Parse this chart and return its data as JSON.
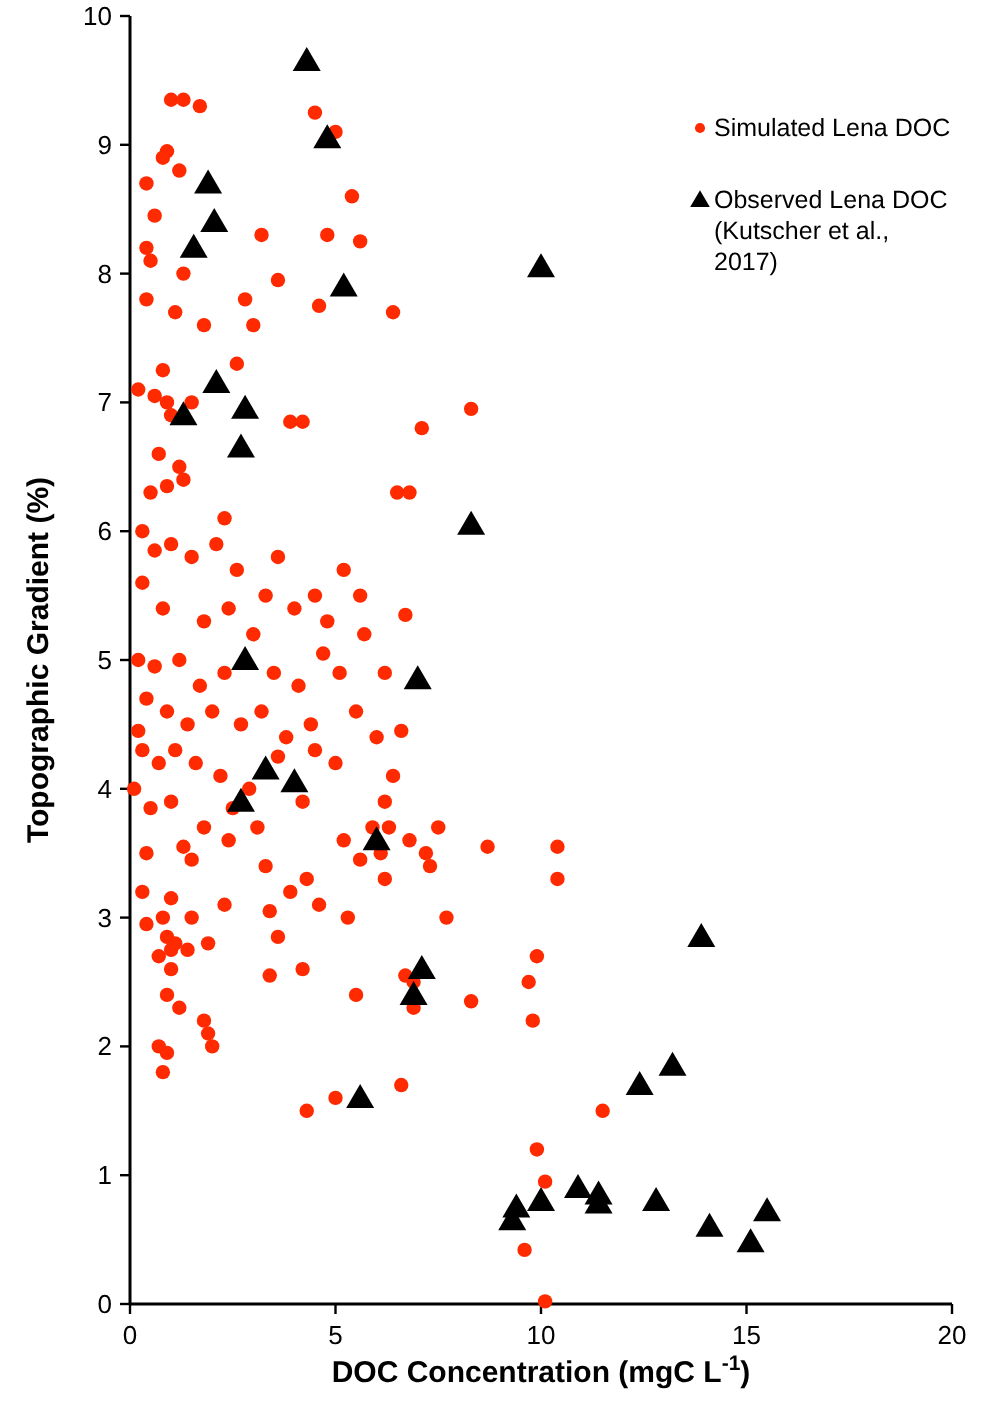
{
  "chart_data": {
    "type": "scatter",
    "xlabel": "DOC Concentration (mgC L$^{-1}$)",
    "ylabel": "Topographic Gradient (%)",
    "xlim": [
      0,
      20
    ],
    "xticks": [
      0,
      5,
      10,
      15,
      20
    ],
    "ylim": [
      0,
      10
    ],
    "yticks": [
      0,
      1,
      2,
      3,
      4,
      5,
      6,
      7,
      8,
      9,
      10
    ],
    "grid": false,
    "legend": "top right",
    "series": [
      {
        "name": "Simulated Lena DOC",
        "color": "#ff2a00",
        "marker": "circle",
        "x": [
          1.0,
          1.3,
          1.7,
          4.5,
          5.0,
          0.9,
          0.8,
          1.2,
          0.4,
          5.4,
          0.6,
          3.2,
          4.8,
          5.6,
          0.4,
          0.5,
          1.3,
          3.6,
          0.4,
          2.8,
          1.1,
          6.4,
          4.6,
          1.8,
          3.0,
          0.2,
          0.6,
          0.9,
          1.0,
          1.5,
          2.6,
          0.8,
          8.3,
          7.1,
          3.9,
          4.2,
          0.7,
          1.2,
          0.9,
          0.5,
          2.3,
          6.5,
          6.8,
          1.3,
          0.3,
          0.6,
          1.0,
          1.5,
          2.1,
          2.6,
          3.3,
          3.6,
          4.5,
          5.2,
          5.6,
          0.3,
          0.8,
          1.8,
          2.4,
          3.0,
          4.0,
          4.8,
          5.7,
          6.7,
          0.2,
          0.6,
          1.2,
          1.7,
          2.3,
          3.5,
          4.1,
          4.7,
          5.1,
          6.2,
          0.4,
          0.9,
          1.4,
          2.0,
          2.7,
          3.2,
          3.8,
          4.4,
          5.5,
          6.0,
          6.6,
          0.3,
          0.7,
          1.1,
          1.6,
          2.2,
          3.6,
          4.5,
          5.0,
          6.4,
          6.2,
          0.1,
          0.5,
          1.0,
          1.8,
          2.5,
          3.1,
          4.2,
          5.2,
          5.9,
          0.4,
          1.3,
          1.5,
          2.4,
          3.3,
          4.3,
          5.6,
          6.1,
          6.3,
          7.5,
          7.3,
          7.2,
          8.7,
          10.4,
          10.4,
          6.8,
          6.2,
          4.6,
          1.0,
          0.8,
          1.5,
          2.3,
          0.4,
          3.4,
          5.3,
          7.7,
          0.9,
          1.1,
          1.4,
          1.9,
          0.7,
          1.0,
          3.6,
          0.9,
          1.2,
          4.2,
          3.4,
          6.7,
          6.9,
          6.9,
          8.3,
          9.7,
          9.9,
          9.8,
          0.7,
          0.9,
          1.8,
          1.9,
          2.0,
          0.8,
          6.6,
          5.0,
          4.3,
          11.5,
          9.9,
          10.1,
          9.6,
          10.1,
          1.0,
          0.3,
          0.2,
          2.9,
          3.9,
          5.5
        ],
        "values": [
          9.35,
          9.35,
          9.3,
          9.25,
          9.1,
          8.95,
          8.9,
          8.8,
          8.7,
          8.6,
          8.45,
          8.3,
          8.3,
          8.25,
          8.2,
          8.1,
          8.0,
          7.95,
          7.8,
          7.8,
          7.7,
          7.7,
          7.75,
          7.6,
          7.6,
          7.1,
          7.05,
          7.0,
          6.9,
          7.0,
          7.3,
          7.25,
          6.95,
          6.8,
          6.85,
          6.85,
          6.6,
          6.5,
          6.35,
          6.3,
          6.1,
          6.3,
          6.3,
          6.4,
          6.0,
          5.85,
          5.9,
          5.8,
          5.9,
          5.7,
          5.5,
          5.8,
          5.5,
          5.7,
          5.5,
          5.6,
          5.4,
          5.3,
          5.4,
          5.2,
          5.4,
          5.3,
          5.2,
          5.35,
          5.0,
          4.95,
          5.0,
          4.8,
          4.9,
          4.9,
          4.8,
          5.05,
          4.9,
          4.9,
          4.7,
          4.6,
          4.5,
          4.6,
          4.5,
          4.6,
          4.4,
          4.5,
          4.6,
          4.4,
          4.45,
          4.3,
          4.2,
          4.3,
          4.2,
          4.1,
          4.25,
          4.3,
          4.2,
          4.1,
          3.9,
          4.0,
          3.85,
          3.9,
          3.7,
          3.85,
          3.7,
          3.9,
          3.6,
          3.7,
          3.5,
          3.55,
          3.45,
          3.6,
          3.4,
          3.3,
          3.45,
          3.5,
          3.7,
          3.7,
          3.4,
          3.5,
          3.55,
          3.55,
          3.3,
          3.6,
          3.3,
          3.1,
          3.15,
          3.0,
          3.0,
          3.1,
          2.95,
          3.05,
          3.0,
          3.0,
          2.85,
          2.8,
          2.75,
          2.8,
          2.7,
          2.6,
          2.85,
          2.4,
          2.3,
          2.6,
          2.55,
          2.55,
          2.5,
          2.3,
          2.35,
          2.5,
          2.7,
          2.2,
          2.0,
          1.95,
          2.2,
          2.1,
          2.0,
          1.8,
          1.7,
          1.6,
          1.5,
          1.5,
          1.2,
          0.95,
          0.42,
          0.02,
          2.75,
          3.2,
          4.45,
          4.0,
          3.2,
          2.4
        ]
      },
      {
        "name": "Observed Lena DOC (Kutscher et al., 2017)",
        "color": "#000000",
        "marker": "triangle",
        "x": [
          4.3,
          4.8,
          1.9,
          2.05,
          1.55,
          5.2,
          10.0,
          2.1,
          1.3,
          2.8,
          2.7,
          8.3,
          7.0,
          2.8,
          3.3,
          4.0,
          2.7,
          6.0,
          7.1,
          6.9,
          5.6,
          13.9,
          13.2,
          12.4,
          9.4,
          9.3,
          10.0,
          10.9,
          11.4,
          11.4,
          12.8,
          14.1,
          15.5,
          15.1
        ],
        "values": [
          9.65,
          9.05,
          8.7,
          8.4,
          8.2,
          7.9,
          8.05,
          7.15,
          6.9,
          6.95,
          6.65,
          6.05,
          4.85,
          5.0,
          4.15,
          4.05,
          3.9,
          3.6,
          2.6,
          2.4,
          1.6,
          2.85,
          1.85,
          1.7,
          0.75,
          0.65,
          0.8,
          0.9,
          0.85,
          0.78,
          0.8,
          0.6,
          0.72,
          0.48
        ]
      }
    ]
  }
}
